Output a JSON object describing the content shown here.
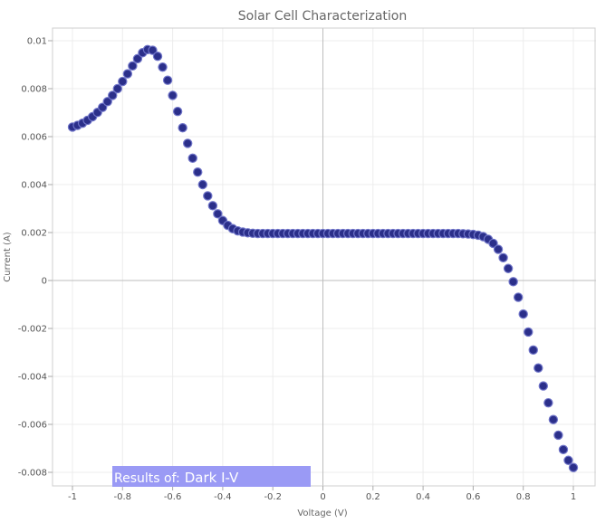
{
  "chart_data": {
    "type": "scatter",
    "title": "Solar Cell Characterization",
    "xlabel": "Voltage (V)",
    "ylabel": "Current (A)",
    "xlim": [
      -1.05,
      1.05
    ],
    "ylim": [
      -0.0085,
      0.0105
    ],
    "xticks": [
      -1,
      -0.8,
      -0.6,
      -0.4,
      -0.2,
      0,
      0.2,
      0.4,
      0.6,
      0.8,
      1
    ],
    "xtick_labels": [
      "-1",
      "-0.8",
      "-0.6",
      "-0.4",
      "-0.2",
      "0",
      "0.2",
      "0.4",
      "0.6",
      "0.8",
      "1"
    ],
    "yticks": [
      -0.008,
      -0.006,
      -0.004,
      -0.002,
      0,
      0.002,
      0.004,
      0.006,
      0.008,
      0.01
    ],
    "ytick_labels": [
      "-0.008",
      "-0.006",
      "-0.004",
      "-0.002",
      "0",
      "0.002",
      "0.004",
      "0.006",
      "0.008",
      "0.01"
    ],
    "grid": true,
    "marker_color": "#2b2f8a",
    "marker_edge_color": "#6f74c8",
    "series": [
      {
        "points": [
          [
            -1.0,
            0.0064
          ],
          [
            -0.98,
            0.00647
          ],
          [
            -0.96,
            0.00656
          ],
          [
            -0.94,
            0.00668
          ],
          [
            -0.92,
            0.00683
          ],
          [
            -0.9,
            0.00701
          ],
          [
            -0.88,
            0.00722
          ],
          [
            -0.86,
            0.00746
          ],
          [
            -0.84,
            0.00772
          ],
          [
            -0.82,
            0.008
          ],
          [
            -0.8,
            0.0083
          ],
          [
            -0.78,
            0.00862
          ],
          [
            -0.76,
            0.00895
          ],
          [
            -0.74,
            0.00925
          ],
          [
            -0.72,
            0.0095
          ],
          [
            -0.7,
            0.00963
          ],
          [
            -0.68,
            0.0096
          ],
          [
            -0.66,
            0.00935
          ],
          [
            -0.64,
            0.0089
          ],
          [
            -0.62,
            0.00835
          ],
          [
            -0.6,
            0.00772
          ],
          [
            -0.58,
            0.00705
          ],
          [
            -0.56,
            0.00637
          ],
          [
            -0.54,
            0.00572
          ],
          [
            -0.52,
            0.0051
          ],
          [
            -0.5,
            0.00452
          ],
          [
            -0.48,
            0.004
          ],
          [
            -0.46,
            0.00353
          ],
          [
            -0.44,
            0.00312
          ],
          [
            -0.42,
            0.00278
          ],
          [
            -0.4,
            0.0025
          ],
          [
            -0.38,
            0.0023
          ],
          [
            -0.36,
            0.00216
          ],
          [
            -0.34,
            0.00207
          ],
          [
            -0.32,
            0.00202
          ],
          [
            -0.3,
            0.00199
          ],
          [
            -0.28,
            0.00197
          ],
          [
            -0.26,
            0.00196
          ],
          [
            -0.24,
            0.00196
          ],
          [
            -0.22,
            0.00196
          ],
          [
            -0.2,
            0.00196
          ],
          [
            -0.18,
            0.00196
          ],
          [
            -0.16,
            0.00196
          ],
          [
            -0.14,
            0.00196
          ],
          [
            -0.12,
            0.00196
          ],
          [
            -0.1,
            0.00196
          ],
          [
            -0.08,
            0.00196
          ],
          [
            -0.06,
            0.00196
          ],
          [
            -0.04,
            0.00196
          ],
          [
            -0.02,
            0.00196
          ],
          [
            0.0,
            0.00196
          ],
          [
            0.02,
            0.00196
          ],
          [
            0.04,
            0.00196
          ],
          [
            0.06,
            0.00196
          ],
          [
            0.08,
            0.00196
          ],
          [
            0.1,
            0.00196
          ],
          [
            0.12,
            0.00196
          ],
          [
            0.14,
            0.00196
          ],
          [
            0.16,
            0.00196
          ],
          [
            0.18,
            0.00196
          ],
          [
            0.2,
            0.00196
          ],
          [
            0.22,
            0.00196
          ],
          [
            0.24,
            0.00196
          ],
          [
            0.26,
            0.00196
          ],
          [
            0.28,
            0.00196
          ],
          [
            0.3,
            0.00196
          ],
          [
            0.32,
            0.00196
          ],
          [
            0.34,
            0.00196
          ],
          [
            0.36,
            0.00196
          ],
          [
            0.38,
            0.00196
          ],
          [
            0.4,
            0.00196
          ],
          [
            0.42,
            0.00196
          ],
          [
            0.44,
            0.00196
          ],
          [
            0.46,
            0.00196
          ],
          [
            0.48,
            0.00196
          ],
          [
            0.5,
            0.00196
          ],
          [
            0.52,
            0.00196
          ],
          [
            0.54,
            0.00196
          ],
          [
            0.56,
            0.00195
          ],
          [
            0.58,
            0.00194
          ],
          [
            0.6,
            0.00192
          ],
          [
            0.62,
            0.00189
          ],
          [
            0.64,
            0.00183
          ],
          [
            0.66,
            0.00172
          ],
          [
            0.68,
            0.00155
          ],
          [
            0.7,
            0.0013
          ],
          [
            0.72,
            0.00095
          ],
          [
            0.74,
            0.0005
          ],
          [
            0.76,
            -5e-05
          ],
          [
            0.78,
            -0.0007
          ],
          [
            0.8,
            -0.0014
          ],
          [
            0.82,
            -0.00215
          ],
          [
            0.84,
            -0.0029
          ],
          [
            0.86,
            -0.00365
          ],
          [
            0.88,
            -0.0044
          ],
          [
            0.9,
            -0.0051
          ],
          [
            0.92,
            -0.0058
          ],
          [
            0.94,
            -0.00645
          ],
          [
            0.96,
            -0.00705
          ],
          [
            0.98,
            -0.0075
          ],
          [
            1.0,
            -0.0078
          ]
        ]
      }
    ]
  },
  "overlay": {
    "prefix": "Results of:",
    "name": "Dark I-V",
    "color": "#9a9af5"
  }
}
